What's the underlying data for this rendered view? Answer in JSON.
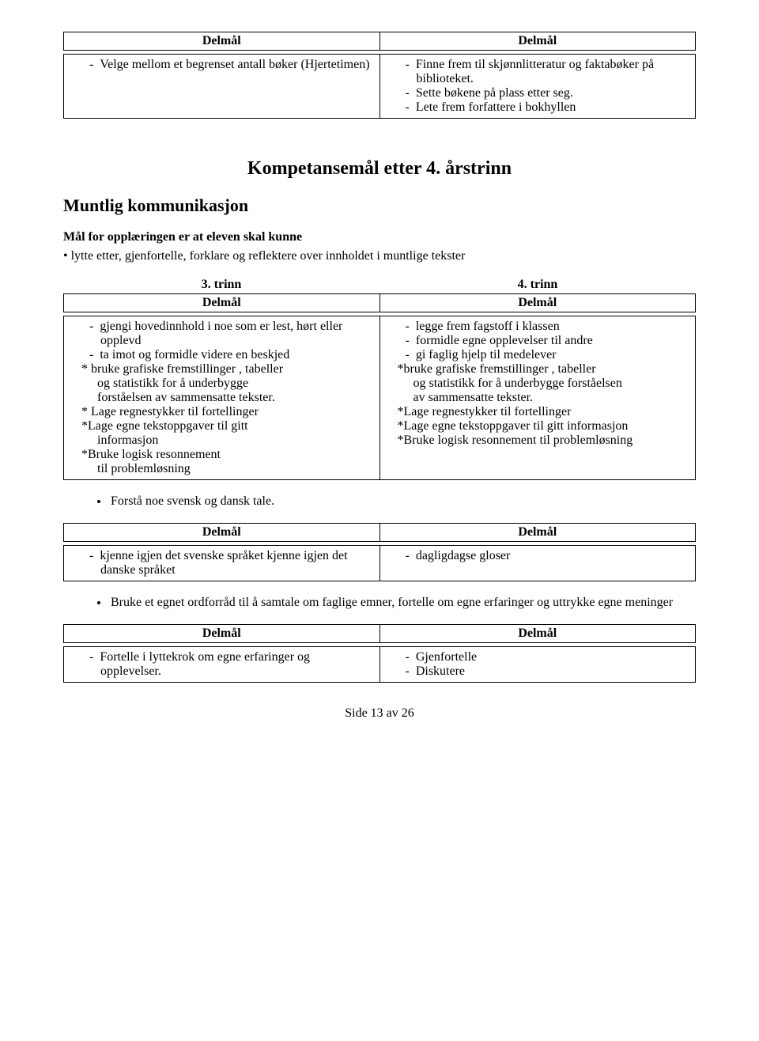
{
  "table1": {
    "header_left": "Delmål",
    "header_right": "Delmål",
    "left_items": [
      "Velge mellom et begrenset antall bøker (Hjertetimen)"
    ],
    "right_items": [
      "Finne frem til skjønnlitteratur og faktabøker på biblioteket.",
      "Sette bøkene på plass etter seg.",
      "Lete frem forfattere i bokhyllen"
    ]
  },
  "heading1": "Kompetansemål etter 4. årstrinn",
  "heading2": "Muntlig kommunikasjon",
  "intro": "Mål for opplæringen er at eleven skal kunne",
  "bullet1": "• lytte etter, gjenfortelle, forklare og reflektere over innholdet i muntlige tekster",
  "trinn_left": "3. trinn",
  "trinn_right": "4. trinn",
  "table2": {
    "header_left": "Delmål",
    "header_right": "Delmål",
    "left": {
      "dash": [
        "gjengi hovedinnhold i noe som er lest, hørt eller opplevd",
        "ta imot og formidle videre en beskjed"
      ],
      "star": [
        "* bruke grafiske fremstillinger , tabeller",
        "   og statistikk for å underbygge",
        "   forståelsen av sammensatte tekster.",
        "* Lage regnestykker til fortellinger",
        "*Lage egne tekstoppgaver til gitt",
        "  informasjon",
        "*Bruke logisk resonnement",
        "  til problemløsning"
      ]
    },
    "right": {
      "dash": [
        "legge frem fagstoff i klassen",
        "formidle egne opplevelser til andre",
        "gi faglig hjelp til medelever"
      ],
      "star": [
        "*bruke grafiske fremstillinger , tabeller",
        "   og statistikk for å underbygge forståelsen",
        "   av sammensatte tekster.",
        "*Lage regnestykker til fortellinger",
        "*Lage egne tekstoppgaver til gitt informasjon",
        "*Bruke logisk resonnement til problemløsning"
      ]
    }
  },
  "mid_bullet": "Forstå noe svensk og dansk tale.",
  "table3": {
    "header_left": "Delmål",
    "header_right": "Delmål",
    "left_items": [
      "kjenne igjen det svenske språket kjenne igjen det danske språket"
    ],
    "right_items": [
      "dagligdagse gloser"
    ]
  },
  "mid_bullet2": "Bruke et egnet ordforråd til å samtale om faglige emner, fortelle om egne erfaringer og uttrykke egne meninger",
  "table4": {
    "header_left": "Delmål",
    "header_right": "Delmål",
    "left_items": [
      "Fortelle i lyttekrok om egne erfaringer og opplevelser."
    ],
    "right_items": [
      "Gjenfortelle",
      "Diskutere"
    ]
  },
  "footer": "Side 13 av 26"
}
